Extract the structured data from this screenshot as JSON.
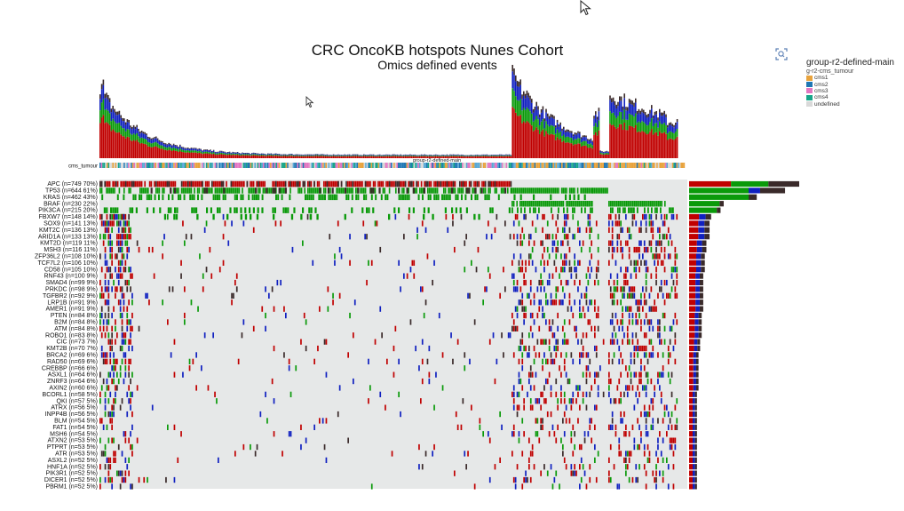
{
  "chart_data": {
    "type": "heatmap",
    "title": "CRC OncoKB hotspots Nunes Cohort",
    "subtitle": "Omics defined events",
    "track_label": "cms_tumour",
    "group_bar_label": "group-r2-defined-main",
    "legend": {
      "title": "group-r2-defined-main",
      "subtitle": "g-r2-cms_tumour",
      "items": [
        {
          "label": "cms1",
          "color": "#e8a33d"
        },
        {
          "label": "cms2",
          "color": "#1f77b4"
        },
        {
          "label": "cms3",
          "color": "#e377c2"
        },
        {
          "label": "cms4",
          "color": "#17a589"
        },
        {
          "label": "undefined",
          "color": "#d9d9d9"
        }
      ]
    },
    "event_colors": {
      "mutation": "#c00000",
      "amplification": "#1020c0",
      "snv_alt": "#0a9a0a",
      "other": "#3a2a2a",
      "background": "#e6e8e8"
    },
    "genes": [
      {
        "label": "APC (n=749 70%)",
        "n": 749,
        "pct": 70
      },
      {
        "label": "TP53 (n=644 61%)",
        "n": 644,
        "pct": 61
      },
      {
        "label": "KRAS (n=462 43%)",
        "n": 462,
        "pct": 43
      },
      {
        "label": "BRAF (n=230 22%)",
        "n": 230,
        "pct": 22
      },
      {
        "label": "PIK3CA (n=215 20%)",
        "n": 215,
        "pct": 20
      },
      {
        "label": "FBXW7 (n=148 14%)",
        "n": 148,
        "pct": 14
      },
      {
        "label": "SOX9 (n=141 13%)",
        "n": 141,
        "pct": 13
      },
      {
        "label": "KMT2C (n=136 13%)",
        "n": 136,
        "pct": 13
      },
      {
        "label": "ARID1A (n=133 13%)",
        "n": 133,
        "pct": 13
      },
      {
        "label": "KMT2D (n=119 11%)",
        "n": 119,
        "pct": 11
      },
      {
        "label": "MSH3 (n=116 11%)",
        "n": 116,
        "pct": 11
      },
      {
        "label": "ZFP36L2 (n=108 10%)",
        "n": 108,
        "pct": 10
      },
      {
        "label": "TCF7L2 (n=106 10%)",
        "n": 106,
        "pct": 10
      },
      {
        "label": "CD58 (n=105 10%)",
        "n": 105,
        "pct": 10
      },
      {
        "label": "RNF43 (n=100 9%)",
        "n": 100,
        "pct": 9
      },
      {
        "label": "SMAD4 (n=99 9%)",
        "n": 99,
        "pct": 9
      },
      {
        "label": "PRKDC (n=98 9%)",
        "n": 98,
        "pct": 9
      },
      {
        "label": "TGFBR2 (n=92 9%)",
        "n": 92,
        "pct": 9
      },
      {
        "label": "LRP1B (n=91 9%)",
        "n": 91,
        "pct": 9
      },
      {
        "label": "AMER1 (n=91 9%)",
        "n": 91,
        "pct": 9
      },
      {
        "label": "PTEN (n=84 8%)",
        "n": 84,
        "pct": 8
      },
      {
        "label": "B2M (n=84 8%)",
        "n": 84,
        "pct": 8
      },
      {
        "label": "ATM (n=84 8%)",
        "n": 84,
        "pct": 8
      },
      {
        "label": "ROBO1 (n=83 8%)",
        "n": 83,
        "pct": 8
      },
      {
        "label": "CIC (n=73 7%)",
        "n": 73,
        "pct": 7
      },
      {
        "label": "KMT2B (n=70 7%)",
        "n": 70,
        "pct": 7
      },
      {
        "label": "BRCA2 (n=69 6%)",
        "n": 69,
        "pct": 6
      },
      {
        "label": "RAD50 (n=69 6%)",
        "n": 69,
        "pct": 6
      },
      {
        "label": "CREBBP (n=66 6%)",
        "n": 66,
        "pct": 6
      },
      {
        "label": "ASXL1 (n=64 6%)",
        "n": 64,
        "pct": 6
      },
      {
        "label": "ZNRF3 (n=64 6%)",
        "n": 64,
        "pct": 6
      },
      {
        "label": "AXIN2 (n=60 6%)",
        "n": 60,
        "pct": 6
      },
      {
        "label": "BCORL1 (n=58 5%)",
        "n": 58,
        "pct": 5
      },
      {
        "label": "QKI (n=57 5%)",
        "n": 57,
        "pct": 5
      },
      {
        "label": "ATRX (n=56 5%)",
        "n": 56,
        "pct": 5
      },
      {
        "label": "INPP4B (n=56 5%)",
        "n": 56,
        "pct": 5
      },
      {
        "label": "BLM (n=54 5%)",
        "n": 54,
        "pct": 5
      },
      {
        "label": "FAT1 (n=54 5%)",
        "n": 54,
        "pct": 5
      },
      {
        "label": "MSH6 (n=54 5%)",
        "n": 54,
        "pct": 5
      },
      {
        "label": "ATXN2 (n=53 5%)",
        "n": 53,
        "pct": 5
      },
      {
        "label": "PTPRT (n=53 5%)",
        "n": 53,
        "pct": 5
      },
      {
        "label": "ATR (n=53 5%)",
        "n": 53,
        "pct": 5
      },
      {
        "label": "ASXL2 (n=52 5%)",
        "n": 52,
        "pct": 5
      },
      {
        "label": "HNF1A (n=52 5%)",
        "n": 52,
        "pct": 5
      },
      {
        "label": "PIK3R1 (n=52 5%)",
        "n": 52,
        "pct": 5
      },
      {
        "label": "DICER1 (n=52 5%)",
        "n": 52,
        "pct": 5
      },
      {
        "label": "PBRM1 (n=52 5%)",
        "n": 52,
        "pct": 5
      }
    ]
  }
}
